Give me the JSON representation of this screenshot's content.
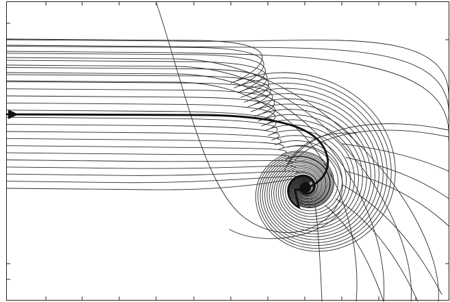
{
  "figure": {
    "stroke_color": "#2a2a2a",
    "highlight_color": "#111111",
    "background": "#ffffff"
  }
}
